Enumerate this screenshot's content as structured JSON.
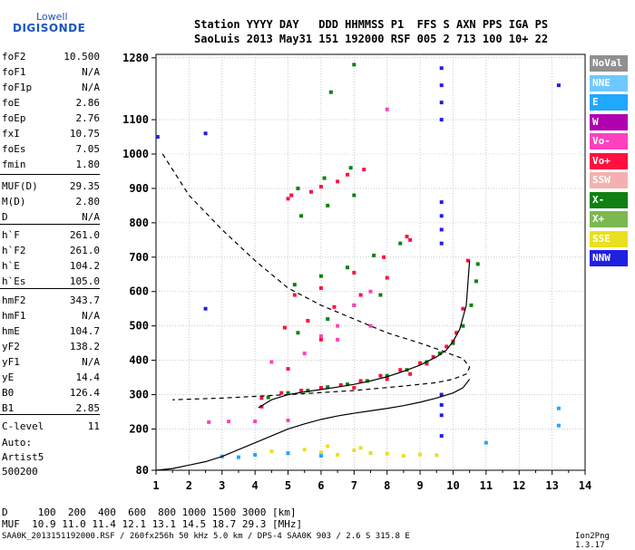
{
  "logo": {
    "top": "Lowell",
    "main": "DIGISONDE"
  },
  "header": {
    "line1": "Station YYYY DAY   DDD HHMMSS P1  FFS S AXN PPS IGA PS",
    "line2": "SaoLuis 2013 May31 151 192000 RSF 005 2 713 100 10+ 22"
  },
  "params": [
    {
      "name": "foF2",
      "value": "10.500"
    },
    {
      "name": "foF1",
      "value": "N/A"
    },
    {
      "name": "foF1p",
      "value": "N/A"
    },
    {
      "name": "foE",
      "value": "2.86"
    },
    {
      "name": "foEp",
      "value": "2.76"
    },
    {
      "name": "fxI",
      "value": "10.75"
    },
    {
      "name": "foEs",
      "value": "7.05"
    },
    {
      "name": "fmin",
      "value": "1.80"
    },
    {
      "name": "MUF(D)",
      "value": "29.35"
    },
    {
      "name": "M(D)",
      "value": "2.80"
    },
    {
      "name": "D",
      "value": "N/A"
    },
    {
      "name": "h`F",
      "value": "261.0"
    },
    {
      "name": "h`F2",
      "value": "261.0"
    },
    {
      "name": "h`E",
      "value": "104.2"
    },
    {
      "name": "h`Es",
      "value": "105.0"
    },
    {
      "name": "hmF2",
      "value": "343.7"
    },
    {
      "name": "hmF1",
      "value": "N/A"
    },
    {
      "name": "hmE",
      "value": "104.7"
    },
    {
      "name": "yF2",
      "value": "138.2"
    },
    {
      "name": "yF1",
      "value": "N/A"
    },
    {
      "name": "yE",
      "value": "14.4"
    },
    {
      "name": "B0",
      "value": "126.4"
    },
    {
      "name": "B1",
      "value": "2.85"
    },
    {
      "name": "C-level",
      "value": "11"
    }
  ],
  "auto": {
    "line1": "Auto:",
    "line2": "Artist5",
    "line3": "500200"
  },
  "legend": [
    {
      "label": "NoVal",
      "color": "#909090"
    },
    {
      "label": "NNE",
      "color": "#6fc8ff"
    },
    {
      "label": "E",
      "color": "#20a8ff"
    },
    {
      "label": "W",
      "color": "#b000b0"
    },
    {
      "label": "Vo-",
      "color": "#ff40c0"
    },
    {
      "label": "Vo+",
      "color": "#ff1040"
    },
    {
      "label": "SSW",
      "color": "#f4b0b0"
    },
    {
      "label": "X-",
      "color": "#108010"
    },
    {
      "label": "X+",
      "color": "#7cb850"
    },
    {
      "label": "SSE",
      "color": "#e8e020"
    },
    {
      "label": "NNW",
      "color": "#2020e0"
    }
  ],
  "footer": {
    "d_row": "D     100  200  400  600  800 1000 1500 3000 [km]",
    "muf_row": "MUF  10.9 11.0 11.4 12.1 13.1 14.5 18.7 29.3 [MHz]",
    "file_line": "SAA0K_2013151192000.RSF / 260fx256h 50 kHz 5.0 km / DPS-4 SAA0K 903 / 2.6 S 315.8 E",
    "version": "Ion2Png 1.3.17"
  },
  "chart_data": {
    "type": "scatter",
    "xlim": [
      1,
      14
    ],
    "ylim": [
      80,
      1290
    ],
    "x_ticks": [
      "1",
      "2",
      "3",
      "4",
      "5",
      "6",
      "7",
      "8",
      "9",
      "10",
      "11",
      "12",
      "13",
      "14"
    ],
    "y_ticks": [
      "80",
      "200",
      "300",
      "400",
      "500",
      "600",
      "700",
      "800",
      "900",
      "1000",
      "1100",
      "1280"
    ],
    "grid": true,
    "series": [
      {
        "name": "Vo+",
        "color": "#ff1040",
        "mode": "markers",
        "x": [
          4.2,
          4.8,
          5.4,
          6.0,
          6.6,
          7.2,
          7.8,
          8.4,
          9.0,
          9.4,
          9.8,
          10.1,
          10.3,
          10.45,
          4.2,
          5.0,
          6.0,
          7.0,
          8.0,
          8.7,
          9.2,
          9.6,
          10.0,
          4.9,
          5.6,
          6.4,
          7.2,
          8.0,
          8.7,
          5.2,
          6.0,
          7.0,
          7.9,
          8.6,
          5.0,
          5.7,
          6.5,
          7.3,
          5.1,
          6.0,
          6.8
        ],
        "y": [
          290,
          305,
          312,
          320,
          328,
          340,
          355,
          372,
          392,
          410,
          440,
          480,
          550,
          690,
          265,
          375,
          460,
          320,
          345,
          360,
          390,
          420,
          455,
          495,
          515,
          555,
          590,
          640,
          750,
          590,
          610,
          655,
          700,
          760,
          870,
          890,
          920,
          955,
          880,
          905,
          940
        ]
      },
      {
        "name": "X-",
        "color": "#108010",
        "mode": "markers",
        "x": [
          4.4,
          5.0,
          5.6,
          6.2,
          6.8,
          7.4,
          8.0,
          8.6,
          9.2,
          9.6,
          10.0,
          10.3,
          10.55,
          10.7,
          10.75,
          5.2,
          6.0,
          6.8,
          7.6,
          8.4,
          5.3,
          6.2,
          7.0,
          7.8,
          5.4,
          6.2,
          7.0,
          5.3,
          6.1,
          6.9,
          6.3,
          7.0
        ],
        "y": [
          292,
          305,
          312,
          322,
          330,
          340,
          355,
          372,
          395,
          420,
          450,
          500,
          560,
          630,
          680,
          620,
          645,
          670,
          705,
          740,
          480,
          520,
          560,
          590,
          820,
          850,
          880,
          900,
          930,
          960,
          1180,
          1260
        ]
      },
      {
        "name": "Vo-",
        "color": "#ff40c0",
        "mode": "markers",
        "x": [
          2.6,
          3.2,
          4.0,
          5.0,
          6.0,
          6.5,
          7.0,
          7.5,
          8.0,
          4.5,
          5.5,
          6.5,
          7.5
        ],
        "y": [
          220,
          222,
          222,
          225,
          470,
          500,
          560,
          600,
          1130,
          395,
          420,
          460,
          500
        ]
      },
      {
        "name": "SSE",
        "color": "#e8e020",
        "mode": "markers",
        "x": [
          4.5,
          5.0,
          5.5,
          6.0,
          6.5,
          7.0,
          7.5,
          8.0,
          8.5,
          9.0,
          9.5,
          6.2,
          7.2
        ],
        "y": [
          135,
          128,
          140,
          132,
          125,
          138,
          130,
          128,
          122,
          126,
          124,
          150,
          145
        ]
      },
      {
        "name": "NNW",
        "color": "#2020e0",
        "mode": "markers",
        "x": [
          9.65,
          9.65,
          9.65,
          9.65,
          9.65,
          9.65,
          9.65,
          9.65,
          9.65,
          9.65,
          9.65,
          9.65,
          1.05,
          2.5,
          13.2,
          2.5
        ],
        "y": [
          1250,
          1200,
          1150,
          1100,
          860,
          820,
          780,
          740,
          300,
          270,
          240,
          180,
          1050,
          1060,
          1200,
          550
        ]
      },
      {
        "name": "E",
        "color": "#20a8ff",
        "mode": "markers",
        "x": [
          3.0,
          3.5,
          4.0,
          5.0,
          6.0,
          11.0,
          13.2,
          13.2
        ],
        "y": [
          120,
          118,
          125,
          130,
          122,
          160,
          260,
          210
        ]
      },
      {
        "name": "O-trace profile",
        "color": "#000000",
        "mode": "line",
        "x": [
          1.0,
          1.5,
          2.0,
          2.5,
          3.0,
          3.5,
          4.0,
          4.5,
          5.0,
          5.5,
          6.0,
          6.5,
          7.0,
          7.5,
          8.0,
          8.5,
          9.0,
          9.5,
          10.0,
          10.3,
          10.5
        ],
        "y": [
          80,
          85,
          95,
          105,
          120,
          140,
          160,
          180,
          200,
          215,
          228,
          238,
          246,
          253,
          260,
          268,
          278,
          290,
          305,
          320,
          345
        ]
      },
      {
        "name": "O-trace virtual height",
        "color": "#000000",
        "mode": "line",
        "x": [
          4.1,
          4.5,
          5.0,
          5.5,
          6.0,
          6.5,
          7.0,
          7.5,
          8.0,
          8.5,
          9.0,
          9.5,
          9.8,
          10.0,
          10.2,
          10.4,
          10.5
        ],
        "y": [
          262,
          285,
          300,
          308,
          315,
          322,
          330,
          340,
          352,
          368,
          386,
          410,
          430,
          455,
          490,
          560,
          690
        ]
      },
      {
        "name": "MUF curve",
        "color": "#000000",
        "mode": "dashed",
        "x": [
          1.2,
          2.0,
          3.0,
          4.0,
          5.0,
          6.0,
          7.0,
          8.0,
          9.0,
          9.6,
          10.0,
          10.3,
          10.5,
          10.4,
          10.0,
          9.5,
          8.5,
          7.0,
          5.0,
          3.0,
          1.5
        ],
        "y": [
          1000,
          880,
          780,
          690,
          610,
          560,
          520,
          480,
          450,
          430,
          415,
          405,
          380,
          360,
          345,
          335,
          325,
          312,
          300,
          290,
          285
        ]
      }
    ]
  }
}
